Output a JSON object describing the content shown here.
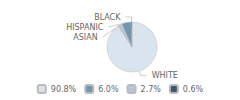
{
  "chart_data": {
    "type": "pie",
    "categories": [
      "WHITE",
      "ASIAN",
      "HISPANIC",
      "BLACK"
    ],
    "values": [
      90.8,
      2.7,
      6.0,
      0.6
    ],
    "value_labels": [
      "90.8%",
      "2.7%",
      "6.0%",
      "0.6%"
    ],
    "colors": [
      "#d9e4ef",
      "#b3c8d9",
      "#7096b0",
      "#3a5a72"
    ],
    "legend": "bottom",
    "legend_labels": [
      "90.8%",
      "6.0%",
      "2.7%",
      "0.6%"
    ]
  }
}
